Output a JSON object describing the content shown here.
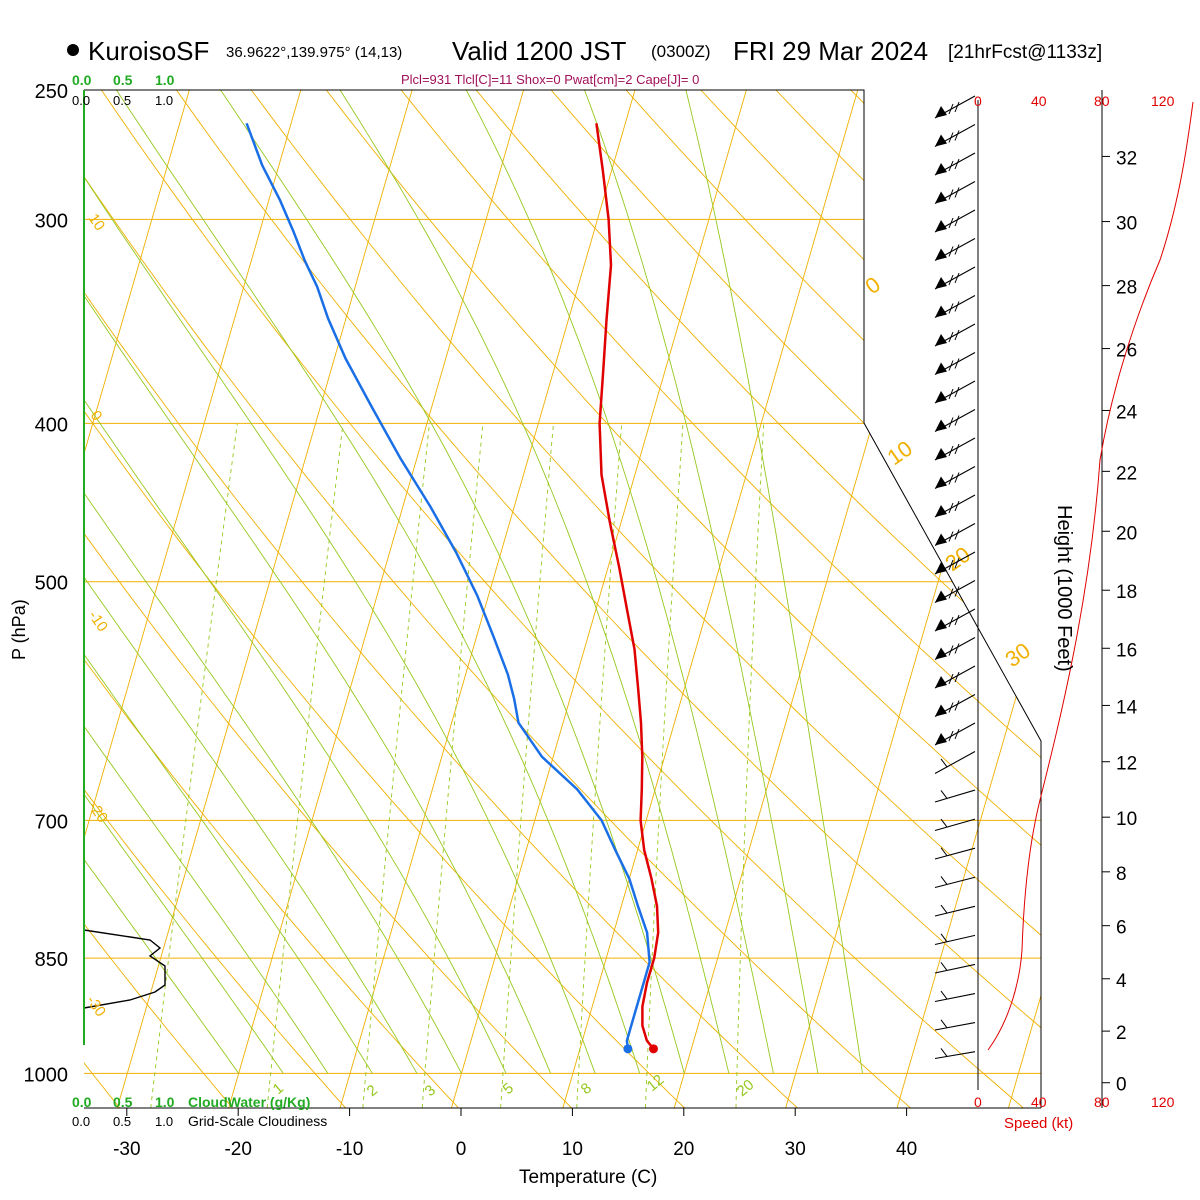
{
  "header": {
    "station": "KuroisoSF",
    "coords": "36.9622°,139.975° (14,13)",
    "valid": "Valid 1200 JST",
    "utc": "(0300Z)",
    "date": "FRI 29 Mar 2024",
    "forecast": "[21hrFcst@1133z]",
    "indices": "Plcl=931 Tlcl[C]=11 Shox=0 Pwat[cm]=2 Cape[J]= 0"
  },
  "colors": {
    "temperature": "#e00000",
    "dewpoint": "#1a6fe6",
    "isotherm": "#f0b000",
    "dry_adiabat": "#f0b000",
    "moist_adiabat": "#96c81e",
    "mixing_ratio": "#96c81e",
    "cloud_green": "#22aa22",
    "wind_scale": "#e00000"
  },
  "chart_data": {
    "type": "line",
    "title": "KuroisoSF Valid 1200 JST (0300Z) FRI 29 Mar 2024",
    "xlabel": "Temperature (C)",
    "ylabel": "P (hPa)",
    "y2label": "Height (1000 Feet)",
    "y_scale": "log",
    "xlim": [
      -34,
      36
    ],
    "ylim": [
      1050,
      250
    ],
    "x_ticks": [
      "-30",
      "-20",
      "-10",
      "0",
      "10",
      "20",
      "30",
      "40"
    ],
    "x_tick_values": [
      -30,
      -20,
      -10,
      0,
      10,
      20,
      30,
      40
    ],
    "p_ticks": [
      "250",
      "300",
      "400",
      "500",
      "700",
      "850",
      "1000"
    ],
    "p_tick_values": [
      250,
      300,
      400,
      500,
      700,
      850,
      1000
    ],
    "height_ticks": [
      "0",
      "2",
      "4",
      "6",
      "8",
      "10",
      "12",
      "14",
      "16",
      "18",
      "20",
      "22",
      "24",
      "26",
      "28",
      "30",
      "32"
    ],
    "dry_adiabat_labels": [
      "10",
      "0",
      "-10",
      "-20",
      "-30",
      "0",
      "10",
      "20",
      "30"
    ],
    "mixing_ratio_labels": [
      "1",
      "2",
      "3",
      "5",
      "8",
      "12",
      "20"
    ],
    "series": [
      {
        "name": "Temperature",
        "points": [
          [
            16.6,
            966
          ],
          [
            15.8,
            955
          ],
          [
            15.0,
            935
          ],
          [
            14.5,
            910
          ],
          [
            14.3,
            880
          ],
          [
            14.3,
            850
          ],
          [
            14.0,
            820
          ],
          [
            13.2,
            790
          ],
          [
            12.0,
            760
          ],
          [
            10.6,
            730
          ],
          [
            9.5,
            700
          ],
          [
            8.8,
            670
          ],
          [
            8.0,
            640
          ],
          [
            7.0,
            610
          ],
          [
            5.8,
            580
          ],
          [
            4.5,
            550
          ],
          [
            2.8,
            520
          ],
          [
            1.0,
            490
          ],
          [
            -1.0,
            460
          ],
          [
            -3.0,
            430
          ],
          [
            -4.5,
            400
          ],
          [
            -5.6,
            370
          ],
          [
            -6.6,
            345
          ],
          [
            -7.6,
            320
          ],
          [
            -9.0,
            300
          ],
          [
            -10.8,
            280
          ],
          [
            -12.6,
            262
          ]
        ]
      },
      {
        "name": "Dewpoint",
        "points": [
          [
            14.3,
            966
          ],
          [
            14.0,
            955
          ],
          [
            14.0,
            935
          ],
          [
            14.0,
            905
          ],
          [
            14.0,
            880
          ],
          [
            14.0,
            855
          ],
          [
            13.0,
            820
          ],
          [
            11.5,
            790
          ],
          [
            10.0,
            760
          ],
          [
            8.0,
            730
          ],
          [
            6.0,
            700
          ],
          [
            3.0,
            670
          ],
          [
            -1.0,
            640
          ],
          [
            -4.0,
            610
          ],
          [
            -5.0,
            590
          ],
          [
            -6.2,
            570
          ],
          [
            -8.5,
            540
          ],
          [
            -11.0,
            510
          ],
          [
            -14.0,
            480
          ],
          [
            -17.5,
            450
          ],
          [
            -21.5,
            420
          ],
          [
            -25.5,
            390
          ],
          [
            -29.0,
            365
          ],
          [
            -31.6,
            345
          ],
          [
            -33.4,
            330
          ],
          [
            -35.2,
            318
          ],
          [
            -37.0,
            305
          ],
          [
            -39.0,
            292
          ],
          [
            -41.5,
            278
          ],
          [
            -44.0,
            262
          ]
        ]
      }
    ],
    "cloud_water_ticks": [
      "0.0",
      "0.5",
      "1.0"
    ],
    "cloud_water_label": "CloudWater (g/Kg)",
    "cloudiness_ticks": [
      "0.0",
      "0.5",
      "1.0"
    ],
    "cloudiness_label": "Grid-Scale Cloudiness",
    "wind_speed_ticks": [
      "0",
      "40",
      "80",
      "120"
    ],
    "wind_speed_label": "Speed (kt)"
  }
}
